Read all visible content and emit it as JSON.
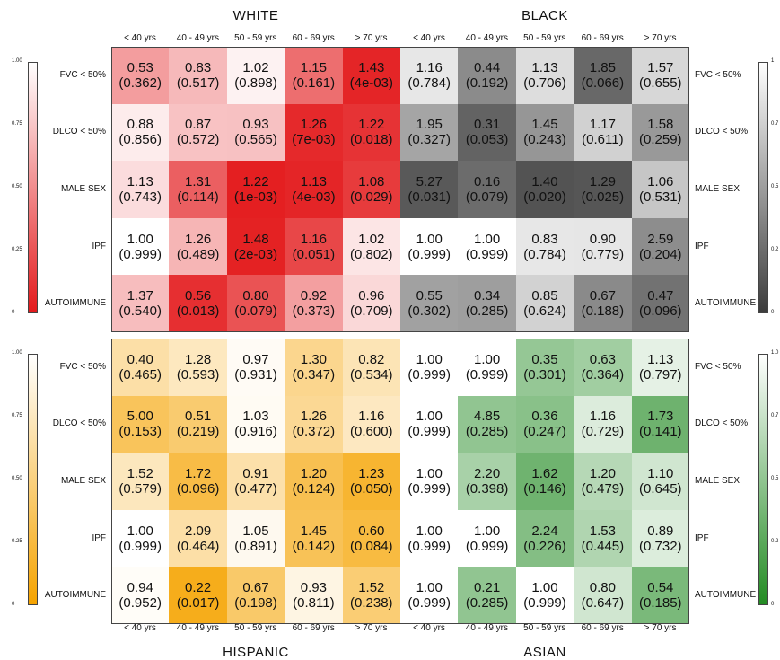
{
  "chart_data": [
    {
      "type": "heatmap",
      "title": "WHITE",
      "colormap": "white-to-red",
      "colors": {
        "low": "#e31a1c",
        "high": "#ffffff"
      },
      "colorbar": {
        "ticks": [
          "1.00",
          "0.75",
          "0.50",
          "0.25",
          "0"
        ],
        "range": [
          0,
          1
        ],
        "placement": "left"
      },
      "columns": [
        "< 40 yrs",
        "40 - 49 yrs",
        "50 - 59 yrs",
        "60 - 69 yrs",
        "> 70 yrs"
      ],
      "rows": [
        "FVC < 50%",
        "DLCO < 50%",
        "MALE SEX",
        "IPF",
        "AUTOIMMUNE"
      ],
      "values": [
        [
          0.53,
          0.83,
          1.02,
          1.15,
          1.43
        ],
        [
          0.88,
          0.87,
          0.93,
          1.26,
          1.22
        ],
        [
          1.13,
          1.31,
          1.22,
          1.13,
          1.08
        ],
        [
          1.0,
          1.26,
          1.48,
          1.16,
          1.02
        ],
        [
          1.37,
          0.56,
          0.8,
          0.92,
          0.96
        ]
      ],
      "pvalues": [
        [
          "0.362",
          "0.517",
          "0.898",
          "0.161",
          "4e-03"
        ],
        [
          "0.856",
          "0.572",
          "0.565",
          "7e-03",
          "0.018"
        ],
        [
          "0.743",
          "0.114",
          "1e-03",
          "4e-03",
          "0.029"
        ],
        [
          "0.999",
          "0.489",
          "2e-03",
          "0.051",
          "0.802"
        ],
        [
          "0.540",
          "0.013",
          "0.079",
          "0.373",
          "0.709"
        ]
      ]
    },
    {
      "type": "heatmap",
      "title": "BLACK",
      "colormap": "white-to-gray",
      "colors": {
        "low": "#3c3c3c",
        "high": "#ffffff"
      },
      "colorbar": {
        "ticks": [
          "1",
          "0.7",
          "0.5",
          "0.2",
          "0"
        ],
        "range": [
          0,
          1
        ],
        "placement": "right"
      },
      "columns": [
        "< 40 yrs",
        "40 - 49 yrs",
        "50 - 59 yrs",
        "60 - 69 yrs",
        "> 70 yrs"
      ],
      "rows": [
        "FVC < 50%",
        "DLCO < 50%",
        "MALE SEX",
        "IPF",
        "AUTOIMMUNE"
      ],
      "values": [
        [
          1.16,
          0.44,
          1.13,
          1.85,
          1.57
        ],
        [
          1.95,
          0.31,
          1.45,
          1.17,
          1.58
        ],
        [
          5.27,
          0.16,
          1.4,
          1.29,
          1.06
        ],
        [
          1.0,
          1.0,
          0.83,
          0.9,
          2.59
        ],
        [
          0.55,
          0.34,
          0.85,
          0.67,
          0.47
        ]
      ],
      "pvalues": [
        [
          "0.784",
          "0.192",
          "0.706",
          "0.066",
          "0.655"
        ],
        [
          "0.327",
          "0.053",
          "0.243",
          "0.611",
          "0.259"
        ],
        [
          "0.031",
          "0.079",
          "0.020",
          "0.025",
          "0.531"
        ],
        [
          "0.999",
          "0.999",
          "0.784",
          "0.779",
          "0.204"
        ],
        [
          "0.302",
          "0.285",
          "0.624",
          "0.188",
          "0.096"
        ]
      ]
    },
    {
      "type": "heatmap",
      "title": "HISPANIC",
      "colormap": "white-to-orange",
      "colors": {
        "low": "#f5a300",
        "high": "#ffffff"
      },
      "colorbar": {
        "ticks": [
          "1.00",
          "0.75",
          "0.50",
          "0.25",
          "0"
        ],
        "range": [
          0,
          1
        ],
        "placement": "left"
      },
      "columns": [
        "< 40 yrs",
        "40 - 49 yrs",
        "50 - 59 yrs",
        "60 - 69 yrs",
        "> 70 yrs"
      ],
      "rows": [
        "FVC < 50%",
        "DLCO < 50%",
        "MALE SEX",
        "IPF",
        "AUTOIMMUNE"
      ],
      "values": [
        [
          0.4,
          1.28,
          0.97,
          1.3,
          0.82
        ],
        [
          5.0,
          0.51,
          1.03,
          1.26,
          1.16
        ],
        [
          1.52,
          1.72,
          0.91,
          1.2,
          1.23
        ],
        [
          1.0,
          2.09,
          1.05,
          1.45,
          0.6
        ],
        [
          0.94,
          0.22,
          0.67,
          0.93,
          1.52
        ]
      ],
      "pvalues": [
        [
          "0.465",
          "0.593",
          "0.931",
          "0.347",
          "0.534"
        ],
        [
          "0.153",
          "0.219",
          "0.916",
          "0.372",
          "0.600"
        ],
        [
          "0.579",
          "0.096",
          "0.477",
          "0.124",
          "0.050"
        ],
        [
          "0.999",
          "0.464",
          "0.891",
          "0.142",
          "0.084"
        ],
        [
          "0.952",
          "0.017",
          "0.198",
          "0.811",
          "0.238"
        ]
      ]
    },
    {
      "type": "heatmap",
      "title": "ASIAN",
      "colormap": "white-to-green",
      "colors": {
        "low": "#238b23",
        "high": "#ffffff"
      },
      "colorbar": {
        "ticks": [
          "1.0",
          "0.7",
          "0.5",
          "0.2",
          "0"
        ],
        "range": [
          0,
          1
        ],
        "placement": "right"
      },
      "columns": [
        "< 40 yrs",
        "40 - 49 yrs",
        "50 - 59 yrs",
        "60 - 69 yrs",
        "> 70 yrs"
      ],
      "rows": [
        "FVC < 50%",
        "DLCO < 50%",
        "MALE SEX",
        "IPF",
        "AUTOIMMUNE"
      ],
      "values": [
        [
          1.0,
          1.0,
          0.35,
          0.63,
          1.13
        ],
        [
          1.0,
          4.85,
          0.36,
          1.16,
          1.73
        ],
        [
          1.0,
          2.2,
          1.62,
          1.2,
          1.1
        ],
        [
          1.0,
          1.0,
          2.24,
          1.53,
          0.89
        ],
        [
          1.0,
          0.21,
          1.0,
          0.8,
          0.54
        ]
      ],
      "pvalues": [
        [
          "0.999",
          "0.999",
          "0.301",
          "0.364",
          "0.797"
        ],
        [
          "0.999",
          "0.285",
          "0.247",
          "0.729",
          "0.141"
        ],
        [
          "0.999",
          "0.398",
          "0.146",
          "0.479",
          "0.645"
        ],
        [
          "0.999",
          "0.999",
          "0.226",
          "0.445",
          "0.732"
        ],
        [
          "0.999",
          "0.285",
          "0.999",
          "0.647",
          "0.185"
        ]
      ]
    }
  ]
}
